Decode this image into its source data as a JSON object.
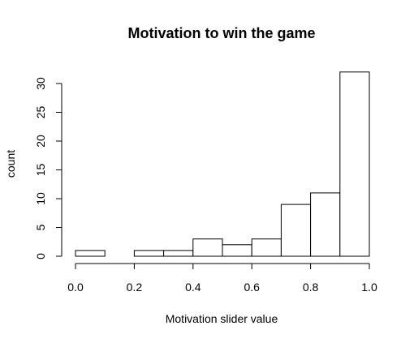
{
  "chart_data": {
    "type": "bar",
    "title": "Motivation to win the game",
    "xlabel": "Motivation slider value",
    "ylabel": "count",
    "bins": [
      {
        "start": 0.0,
        "end": 0.1,
        "count": 1
      },
      {
        "start": 0.1,
        "end": 0.2,
        "count": 0
      },
      {
        "start": 0.2,
        "end": 0.3,
        "count": 1
      },
      {
        "start": 0.3,
        "end": 0.4,
        "count": 1
      },
      {
        "start": 0.4,
        "end": 0.5,
        "count": 3
      },
      {
        "start": 0.5,
        "end": 0.6,
        "count": 2
      },
      {
        "start": 0.6,
        "end": 0.7,
        "count": 3
      },
      {
        "start": 0.7,
        "end": 0.8,
        "count": 9
      },
      {
        "start": 0.8,
        "end": 0.9,
        "count": 11
      },
      {
        "start": 0.9,
        "end": 1.0,
        "count": 32
      }
    ],
    "xlim": [
      0.0,
      1.0
    ],
    "ylim": [
      0,
      32
    ],
    "x_ticks": [
      0.0,
      0.2,
      0.4,
      0.6,
      0.8,
      1.0
    ],
    "x_tick_labels": [
      "0.0",
      "0.2",
      "0.4",
      "0.6",
      "0.8",
      "1.0"
    ],
    "y_ticks": [
      0,
      5,
      10,
      15,
      20,
      25,
      30
    ],
    "y_tick_labels": [
      "0",
      "5",
      "10",
      "15",
      "20",
      "25",
      "30"
    ],
    "grid": false,
    "bar_fill": "#ffffff",
    "bar_stroke": "#000000"
  }
}
